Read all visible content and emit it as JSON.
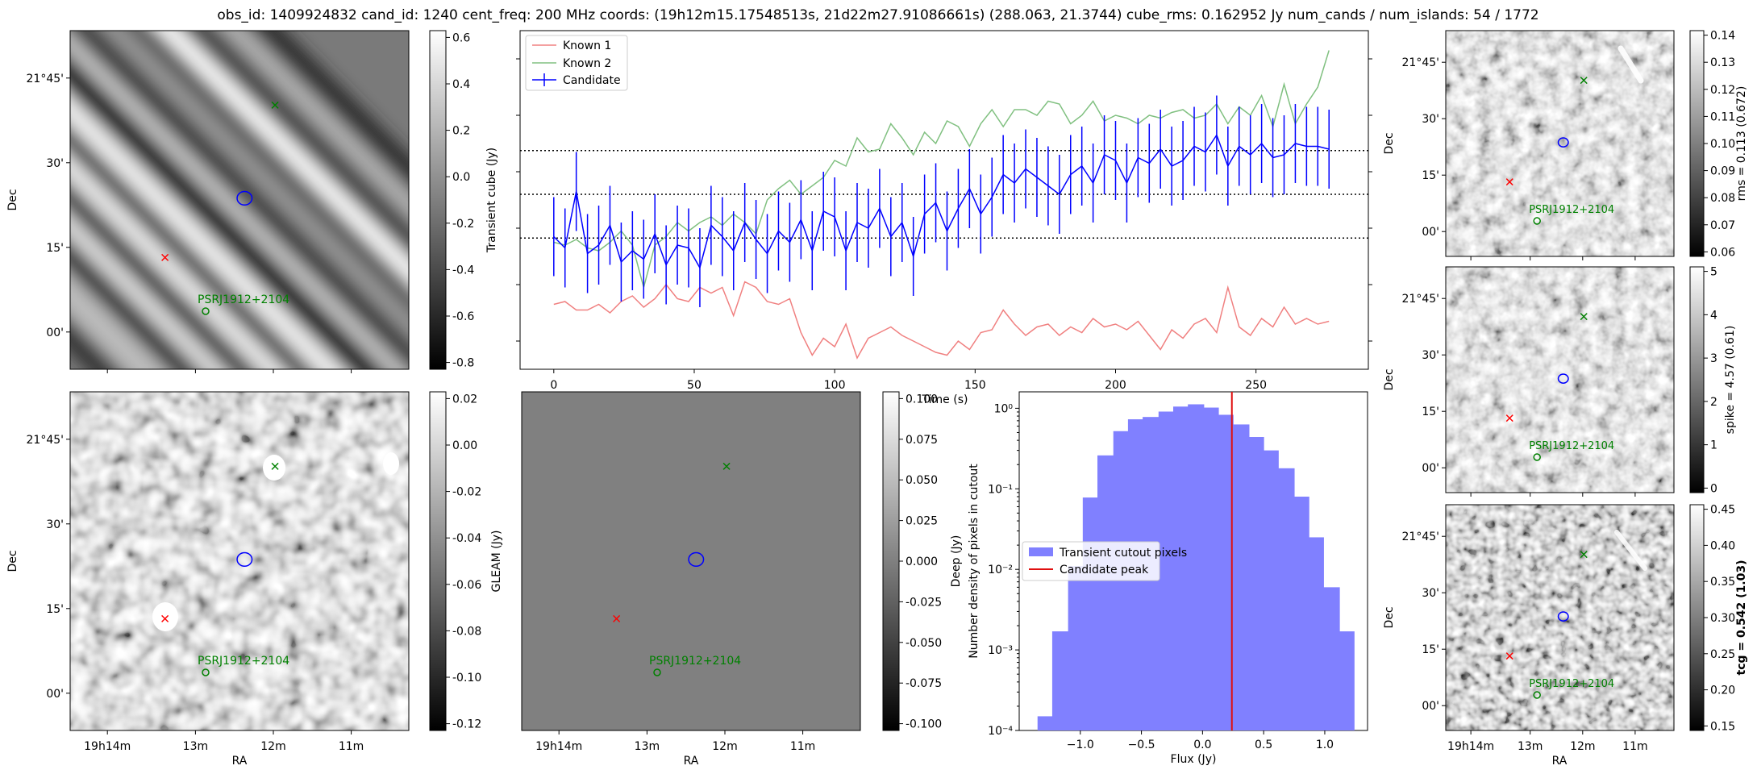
{
  "title": "obs_id: 1409924832 cand_id: 1240 cent_freq: 200 MHz coords: (19h12m15.17548513s, 21d22m27.91086661s) (288.063, 21.3744) cube_rms: 0.162952 Jy num_cands / num_islands: 54 / 1772",
  "sky": {
    "ra_ticks": [
      "19h14m",
      "13m",
      "12m",
      "11m"
    ],
    "dec_ticks": [
      "21°45'",
      "30'",
      "15'",
      "00'"
    ],
    "ra_label": "RA",
    "dec_label": "Dec",
    "source_label": "PSRJ1912+2104"
  },
  "colorbars": {
    "transient": {
      "label": "Transient cube (Jy)",
      "ticks": [
        "0.6",
        "0.4",
        "0.2",
        "0.0",
        "-0.2",
        "-0.4",
        "-0.6",
        "-0.8"
      ]
    },
    "gleam": {
      "label": "GLEAM (Jy)",
      "ticks": [
        "0.02",
        "0.00",
        "-0.02",
        "-0.04",
        "-0.06",
        "-0.08",
        "-0.10",
        "-0.12"
      ]
    },
    "deep": {
      "label": "Deep (Jy)",
      "ticks": [
        "0.100",
        "0.075",
        "0.050",
        "0.025",
        "0.000",
        "-0.025",
        "-0.050",
        "-0.075",
        "-0.100"
      ]
    },
    "rms": {
      "label": "rms = 0.113 (0.672)",
      "ticks": [
        "0.14",
        "0.13",
        "0.12",
        "0.11",
        "0.10",
        "0.09",
        "0.08",
        "0.07",
        "0.06"
      ]
    },
    "spike": {
      "label": "spike = 4.57 (0.61)",
      "ticks": [
        "5",
        "4",
        "3",
        "2",
        "1",
        "0"
      ]
    },
    "tcg": {
      "label": "tcg = 0.542 (1.03)",
      "ticks": [
        "0.45",
        "0.40",
        "0.35",
        "0.30",
        "0.25",
        "0.20",
        "0.15"
      ]
    }
  },
  "colors": {
    "candidate": "#0000ff",
    "known1": "#f08080",
    "known2": "#80c080",
    "hist": "#8080ff",
    "peak": "#e01010",
    "marker_red": "#ff0000",
    "marker_green": "#008000"
  },
  "chart_data": [
    {
      "type": "line",
      "xlabel": "Time (s)",
      "xlim": [
        -12,
        290
      ],
      "ylim": [
        -0.62,
        0.58
      ],
      "xticks": [
        0,
        50,
        100,
        150,
        200,
        250
      ],
      "legend_position": "top-left",
      "hlines": [
        0.155,
        0.0,
        -0.155
      ],
      "series": [
        {
          "name": "Known 1",
          "x": [
            0,
            4,
            8,
            12,
            16,
            20,
            24,
            28,
            32,
            36,
            40,
            44,
            48,
            52,
            56,
            60,
            64,
            68,
            72,
            76,
            80,
            84,
            88,
            92,
            96,
            100,
            104,
            108,
            112,
            116,
            120,
            124,
            128,
            132,
            136,
            140,
            144,
            148,
            152,
            156,
            160,
            164,
            168,
            172,
            176,
            180,
            184,
            188,
            192,
            196,
            200,
            204,
            208,
            212,
            216,
            220,
            224,
            228,
            232,
            236,
            240,
            244,
            248,
            252,
            256,
            260,
            264,
            268,
            272,
            276
          ],
          "y": [
            -0.39,
            -0.38,
            -0.41,
            -0.41,
            -0.39,
            -0.42,
            -0.38,
            -0.36,
            -0.4,
            -0.37,
            -0.32,
            -0.37,
            -0.38,
            -0.33,
            -0.35,
            -0.33,
            -0.43,
            -0.31,
            -0.33,
            -0.38,
            -0.39,
            -0.37,
            -0.49,
            -0.57,
            -0.51,
            -0.54,
            -0.46,
            -0.58,
            -0.51,
            -0.49,
            -0.47,
            -0.5,
            -0.52,
            -0.54,
            -0.56,
            -0.57,
            -0.52,
            -0.55,
            -0.49,
            -0.48,
            -0.41,
            -0.46,
            -0.5,
            -0.47,
            -0.46,
            -0.5,
            -0.47,
            -0.49,
            -0.44,
            -0.47,
            -0.46,
            -0.48,
            -0.45,
            -0.5,
            -0.55,
            -0.48,
            -0.51,
            -0.46,
            -0.44,
            -0.49,
            -0.33,
            -0.47,
            -0.5,
            -0.44,
            -0.47,
            -0.4,
            -0.46,
            -0.44,
            -0.46,
            -0.45
          ]
        },
        {
          "name": "Known 2",
          "x": [
            0,
            4,
            8,
            12,
            16,
            20,
            24,
            28,
            32,
            36,
            40,
            44,
            48,
            52,
            56,
            60,
            64,
            68,
            72,
            76,
            80,
            84,
            88,
            92,
            96,
            100,
            104,
            108,
            112,
            116,
            120,
            124,
            128,
            132,
            136,
            140,
            144,
            148,
            152,
            156,
            160,
            164,
            168,
            172,
            176,
            180,
            184,
            188,
            192,
            196,
            200,
            204,
            208,
            212,
            216,
            220,
            224,
            228,
            232,
            236,
            240,
            244,
            248,
            252,
            256,
            260,
            264,
            268,
            272,
            276
          ],
          "y": [
            -0.17,
            -0.18,
            -0.16,
            -0.19,
            -0.2,
            -0.17,
            -0.13,
            -0.18,
            -0.33,
            -0.18,
            -0.15,
            -0.1,
            -0.13,
            -0.1,
            -0.08,
            -0.11,
            -0.07,
            -0.1,
            -0.14,
            -0.02,
            0.02,
            0.05,
            0.0,
            0.03,
            0.06,
            0.12,
            0.1,
            0.2,
            0.15,
            0.16,
            0.25,
            0.2,
            0.14,
            0.22,
            0.18,
            0.26,
            0.24,
            0.17,
            0.25,
            0.3,
            0.24,
            0.3,
            0.3,
            0.28,
            0.33,
            0.32,
            0.25,
            0.28,
            0.33,
            0.26,
            0.28,
            0.27,
            0.25,
            0.28,
            0.27,
            0.29,
            0.3,
            0.27,
            0.28,
            0.32,
            0.25,
            0.31,
            0.28,
            0.35,
            0.24,
            0.39,
            0.25,
            0.32,
            0.38,
            0.51
          ]
        },
        {
          "name": "Candidate",
          "x": [
            0,
            4,
            8,
            12,
            16,
            20,
            24,
            28,
            32,
            36,
            40,
            44,
            48,
            52,
            56,
            60,
            64,
            68,
            72,
            76,
            80,
            84,
            88,
            92,
            96,
            100,
            104,
            108,
            112,
            116,
            120,
            124,
            128,
            132,
            136,
            140,
            144,
            148,
            152,
            156,
            160,
            164,
            168,
            172,
            176,
            180,
            184,
            188,
            192,
            196,
            200,
            204,
            208,
            212,
            216,
            220,
            224,
            228,
            232,
            236,
            240,
            244,
            248,
            252,
            256,
            260,
            264,
            268,
            272,
            276
          ],
          "y": [
            -0.15,
            -0.19,
            0.01,
            -0.21,
            -0.18,
            -0.11,
            -0.24,
            -0.2,
            -0.23,
            -0.14,
            -0.25,
            -0.18,
            -0.19,
            -0.26,
            -0.11,
            -0.15,
            -0.2,
            -0.1,
            -0.16,
            -0.21,
            -0.13,
            -0.17,
            -0.09,
            -0.2,
            -0.06,
            -0.08,
            -0.2,
            -0.1,
            -0.12,
            -0.05,
            -0.15,
            -0.1,
            -0.22,
            -0.07,
            -0.03,
            -0.13,
            -0.05,
            0.02,
            -0.07,
            -0.01,
            0.07,
            0.04,
            0.09,
            0.06,
            0.03,
            0.0,
            0.07,
            0.1,
            0.04,
            0.14,
            0.12,
            0.04,
            0.13,
            0.11,
            0.16,
            0.1,
            0.12,
            0.17,
            0.15,
            0.21,
            0.1,
            0.17,
            0.14,
            0.18,
            0.13,
            0.14,
            0.18,
            0.17,
            0.17,
            0.16
          ],
          "yerr": 0.14
        }
      ]
    },
    {
      "type": "bar",
      "xlabel": "Flux (Jy)",
      "ylabel": "Number density of pixels in cutout",
      "yscale": "log",
      "xlim": [
        -1.5,
        1.35
      ],
      "ylim": [
        0.0001,
        1.6
      ],
      "xticks": [
        -1.0,
        -0.5,
        0.0,
        0.5,
        1.0
      ],
      "yticks": [
        "10⁰",
        "10⁻¹",
        "10⁻²",
        "10⁻³",
        "10⁻⁴"
      ],
      "legend_position": "center-left",
      "legend": [
        "Transient cutout pixels",
        "Candidate peak"
      ],
      "bin_edges": [
        -1.35,
        -1.23,
        -1.1,
        -0.98,
        -0.86,
        -0.73,
        -0.61,
        -0.49,
        -0.36,
        -0.24,
        -0.12,
        0.01,
        0.13,
        0.25,
        0.38,
        0.5,
        0.62,
        0.75,
        0.87,
        0.99,
        1.12,
        1.24
      ],
      "values": [
        0.00015,
        0.0017,
        0.011,
        0.078,
        0.26,
        0.52,
        0.73,
        0.78,
        0.91,
        1.05,
        1.12,
        1.02,
        0.83,
        0.63,
        0.44,
        0.3,
        0.18,
        0.08,
        0.025,
        0.006,
        0.0017
      ],
      "peak_x": 0.24
    }
  ]
}
